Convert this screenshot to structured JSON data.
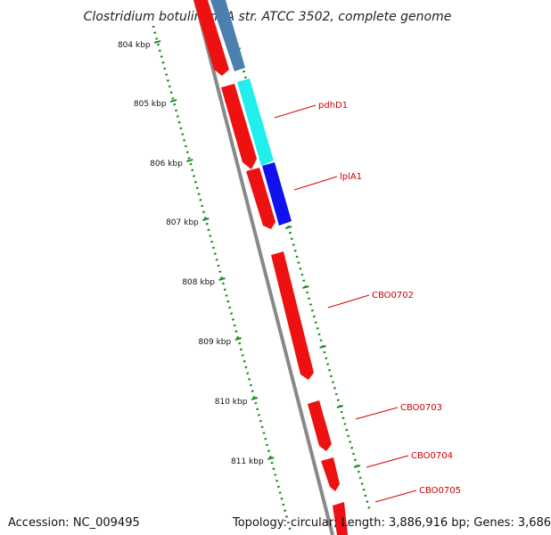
{
  "title": "Clostridium botulinum A str. ATCC 3502, complete genome",
  "footer": {
    "accession": "Accession: NC_009495",
    "topology": "Topology: circular; Length: 3,886,916 bp; Genes: 3,686"
  },
  "colors": {
    "backbone": "#888888",
    "tick": "#1a8a1a",
    "gene_forward": "#ee1111",
    "gene_cyan": "#22eeee",
    "gene_blue": "#1111ee",
    "gene_steel": "#4a7fb0",
    "label_text": "#cc0000",
    "leader_line": "#dd0000"
  },
  "tick_labels": [
    {
      "kbp": 804,
      "label": "804 kbp"
    },
    {
      "kbp": 805,
      "label": "805 kbp"
    },
    {
      "kbp": 806,
      "label": "806 kbp"
    },
    {
      "kbp": 807,
      "label": "807 kbp"
    },
    {
      "kbp": 808,
      "label": "808 kbp"
    },
    {
      "kbp": 809,
      "label": "809 kbp"
    },
    {
      "kbp": 810,
      "label": "810 kbp"
    },
    {
      "kbp": 811,
      "label": "811 kbp"
    }
  ],
  "gene_labels": [
    {
      "id": "pdhD1",
      "label": "pdhD1"
    },
    {
      "id": "lplA1",
      "label": "lplA1"
    },
    {
      "id": "CBO0702",
      "label": "CBO0702"
    },
    {
      "id": "CBO0703",
      "label": "CBO0703"
    },
    {
      "id": "CBO0704",
      "label": "CBO0704"
    },
    {
      "id": "CBO0705",
      "label": "CBO0705"
    }
  ]
}
